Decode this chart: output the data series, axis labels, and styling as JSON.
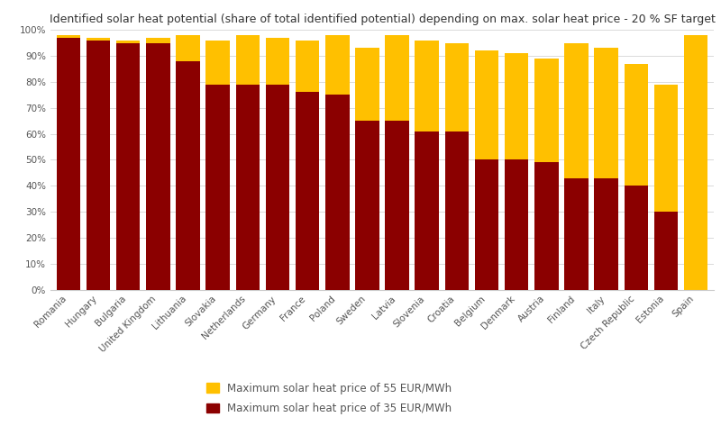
{
  "title": "Identified solar heat potential (share of total identified potential) depending on max. solar heat price - 20 % SF target",
  "categories": [
    "Romania",
    "Hungary",
    "Bulgaria",
    "United Kingdom",
    "Lithuania",
    "Slovakia",
    "Netherlands",
    "Germany",
    "France",
    "Poland",
    "Sweden",
    "Latvia",
    "Slovenia",
    "Croatia",
    "Belgium",
    "Denmark",
    "Austria",
    "Finland",
    "Italy",
    "Czech Republic",
    "Estonia",
    "Spain"
  ],
  "val_35": [
    97,
    96,
    95,
    95,
    88,
    79,
    79,
    79,
    76,
    75,
    65,
    65,
    61,
    61,
    50,
    50,
    49,
    43,
    43,
    40,
    30,
    0
  ],
  "val_55_total": [
    98,
    97,
    96,
    97,
    98,
    96,
    98,
    97,
    96,
    98,
    93,
    98,
    96,
    95,
    92,
    91,
    89,
    95,
    93,
    87,
    79,
    98
  ],
  "color_35": "#8B0000",
  "color_55": "#FFC000",
  "legend_55": "Maximum solar heat price of 55 EUR/MWh",
  "legend_35": "Maximum solar heat price of 35 EUR/MWh",
  "ylim": [
    0,
    100
  ],
  "yticks": [
    0,
    10,
    20,
    30,
    40,
    50,
    60,
    70,
    80,
    90,
    100
  ],
  "ytick_labels": [
    "0%",
    "10%",
    "20%",
    "30%",
    "40%",
    "50%",
    "60%",
    "70%",
    "80%",
    "90%",
    "100%"
  ],
  "background_color": "#FFFFFF",
  "title_fontsize": 9,
  "tick_fontsize": 7.5,
  "legend_fontsize": 8.5,
  "bar_width": 0.8
}
